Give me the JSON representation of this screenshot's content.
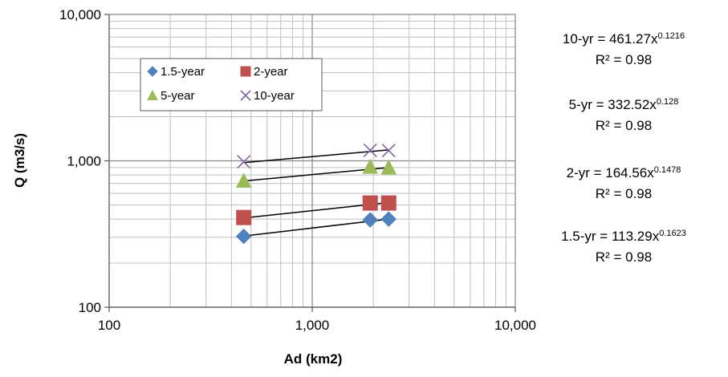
{
  "chart_data": {
    "type": "scatter",
    "xlabel": "Ad (km2)",
    "ylabel": "Q (m3/s)",
    "xscale": "log",
    "yscale": "log",
    "xlim": [
      100,
      10000
    ],
    "ylim": [
      100,
      10000
    ],
    "x_tick_labels": [
      "100",
      "1,000",
      "10,000"
    ],
    "y_tick_labels": [
      "100",
      "1,000",
      "10,000"
    ],
    "grid": true,
    "legend_placement": "upper-left inside plot",
    "x": [
      460,
      1930,
      2380
    ],
    "series": [
      {
        "name": "1.5-year",
        "marker": "diamond",
        "color": "#4F81BD",
        "values": [
          305,
          395,
          400
        ]
      },
      {
        "name": "2-year",
        "marker": "square",
        "color": "#C0504D",
        "values": [
          410,
          515,
          515
        ]
      },
      {
        "name": "5-year",
        "marker": "triangle",
        "color": "#9BBB59",
        "values": [
          730,
          910,
          900
        ]
      },
      {
        "name": "10-year",
        "marker": "x",
        "color": "#8064A2",
        "values": [
          985,
          1180,
          1175
        ]
      }
    ],
    "trendlines": [
      {
        "series": "10-year",
        "coef": 461.27,
        "exp": 0.1216
      },
      {
        "series": "5-year",
        "coef": 332.52,
        "exp": 0.128
      },
      {
        "series": "2-year",
        "coef": 164.56,
        "exp": 0.1478
      },
      {
        "series": "1.5-year",
        "coef": 113.29,
        "exp": 0.1623
      }
    ],
    "equations": [
      {
        "prefix": "10-yr = 461.27x",
        "exponent": "0.1216",
        "r2": "R² = 0.98"
      },
      {
        "prefix": "5-yr = 332.52x",
        "exponent": "0.128",
        "r2": "R² = 0.98"
      },
      {
        "prefix": "2-yr = 164.56x",
        "exponent": "0.1478",
        "r2": "R² = 0.98"
      },
      {
        "prefix": "1.5-yr = 113.29x",
        "exponent": "0.1623",
        "r2": "R² = 0.98"
      }
    ]
  }
}
